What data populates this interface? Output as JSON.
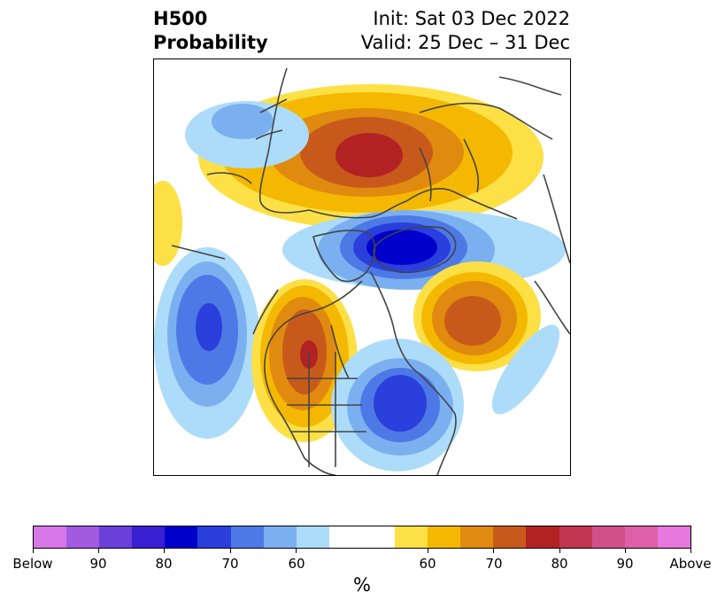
{
  "header": {
    "title_line1": "H500",
    "title_line2": "Probability",
    "init_label": "Init: Sat 03 Dec 2022",
    "valid_label": "Valid: 25 Dec – 31 Dec"
  },
  "colorbar": {
    "colors": [
      "#d877e8",
      "#a15be0",
      "#6b3fd9",
      "#3a1fd3",
      "#0000cc",
      "#2a3fdb",
      "#4d79e6",
      "#7ab0f0",
      "#acdcfa",
      "#ffffff",
      "#ffffff",
      "#fde046",
      "#f4b800",
      "#e08a10",
      "#c75a1a",
      "#b22222",
      "#c03550",
      "#d0508a",
      "#dd60a8",
      "#e878dd"
    ],
    "below_label": "Below",
    "above_label": "Above",
    "tick_labels": [
      "Below",
      "90",
      "80",
      "70",
      "60",
      "60",
      "70",
      "80",
      "90",
      "Above"
    ],
    "units_label": "%"
  },
  "map": {
    "projection": "north-polar-stereographic",
    "anomalies": [
      {
        "name": "scandinavia-russia-high",
        "sign": "above",
        "peak_percent": 80
      },
      {
        "name": "greenland-arctic-low",
        "sign": "below",
        "peak_percent": 80
      },
      {
        "name": "north-pacific-low",
        "sign": "below",
        "peak_percent": 80
      },
      {
        "name": "western-north-america-high",
        "sign": "above",
        "peak_percent": 80
      },
      {
        "name": "eastern-north-america-low",
        "sign": "below",
        "peak_percent": 80
      },
      {
        "name": "north-atlantic-high",
        "sign": "above",
        "peak_percent": 70
      },
      {
        "name": "east-asia-high",
        "sign": "above",
        "peak_percent": 60
      }
    ]
  }
}
